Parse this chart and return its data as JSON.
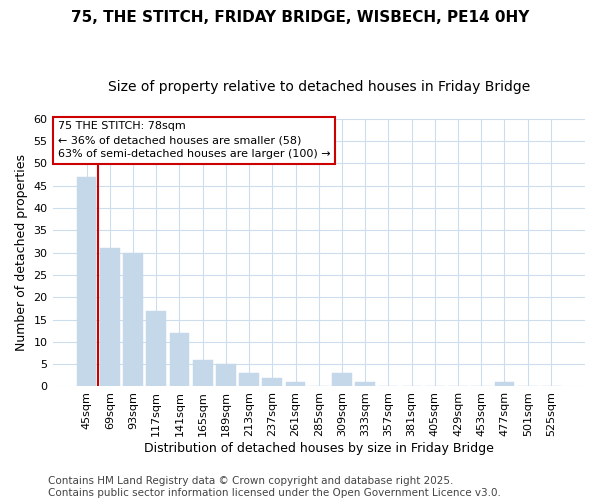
{
  "title1": "75, THE STITCH, FRIDAY BRIDGE, WISBECH, PE14 0HY",
  "title2": "Size of property relative to detached houses in Friday Bridge",
  "xlabel": "Distribution of detached houses by size in Friday Bridge",
  "ylabel": "Number of detached properties",
  "bar_color": "#c5d8ea",
  "bar_edge_color": "#c5d8ea",
  "categories": [
    "45sqm",
    "69sqm",
    "93sqm",
    "117sqm",
    "141sqm",
    "165sqm",
    "189sqm",
    "213sqm",
    "237sqm",
    "261sqm",
    "285sqm",
    "309sqm",
    "333sqm",
    "357sqm",
    "381sqm",
    "405sqm",
    "429sqm",
    "453sqm",
    "477sqm",
    "501sqm",
    "525sqm"
  ],
  "values": [
    47,
    31,
    30,
    17,
    12,
    6,
    5,
    3,
    2,
    1,
    0,
    3,
    1,
    0,
    0,
    0,
    0,
    0,
    1,
    0,
    0
  ],
  "ylim": [
    0,
    60
  ],
  "yticks": [
    0,
    5,
    10,
    15,
    20,
    25,
    30,
    35,
    40,
    45,
    50,
    55,
    60
  ],
  "vline_x": 0.5,
  "vline_color": "#cc0000",
  "annotation_text": "75 THE STITCH: 78sqm\n← 36% of detached houses are smaller (58)\n63% of semi-detached houses are larger (100) →",
  "annotation_box_color": "#cc0000",
  "footer_text": "Contains HM Land Registry data © Crown copyright and database right 2025.\nContains public sector information licensed under the Open Government Licence v3.0.",
  "background_color": "#ffffff",
  "plot_bg_color": "#ffffff",
  "grid_color": "#ccdded",
  "title_fontsize": 11,
  "subtitle_fontsize": 10,
  "axis_label_fontsize": 9,
  "tick_fontsize": 8,
  "annotation_fontsize": 8,
  "footer_fontsize": 7.5
}
